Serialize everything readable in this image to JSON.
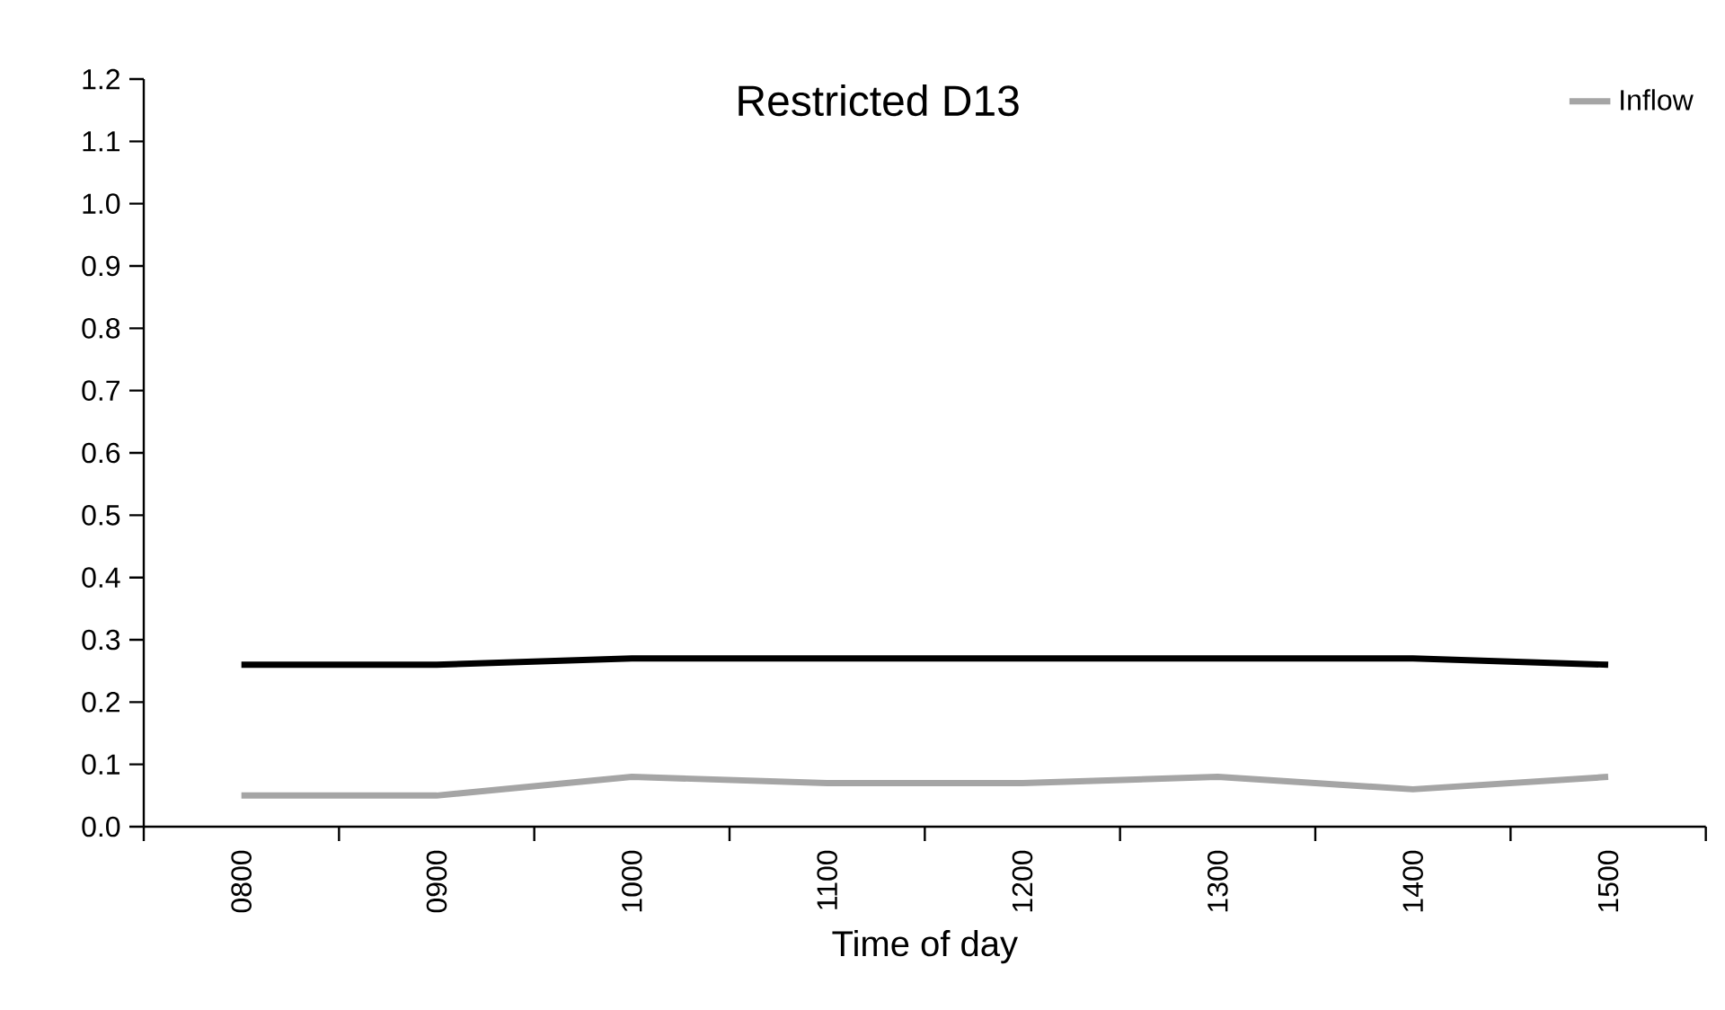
{
  "chart_data": {
    "type": "line",
    "title": "Restricted D13",
    "xlabel": "Time of day",
    "categories": [
      "0800",
      "0900",
      "1000",
      "1100",
      "1200",
      "1300",
      "1400",
      "1500"
    ],
    "series": [
      {
        "color": "#000000",
        "values": [
          0.26,
          0.26,
          0.27,
          0.27,
          0.27,
          0.27,
          0.27,
          0.26
        ]
      },
      {
        "name": "Inflow",
        "color": "#a5a5a5",
        "values": [
          0.05,
          0.05,
          0.08,
          0.07,
          0.07,
          0.08,
          0.06,
          0.08
        ]
      }
    ],
    "ylim": [
      0,
      1.2
    ],
    "yticks": [
      {
        "value": 0,
        "label": "0.0"
      },
      0.1,
      0.2,
      0.3,
      0.4,
      0.5,
      0.6,
      0.7,
      0.8,
      0.9,
      {
        "value": 1,
        "label": "1.0"
      },
      1.1,
      1.2
    ],
    "legend": "top right",
    "marker": "none",
    "line_style": "solid",
    "grid": false
  }
}
